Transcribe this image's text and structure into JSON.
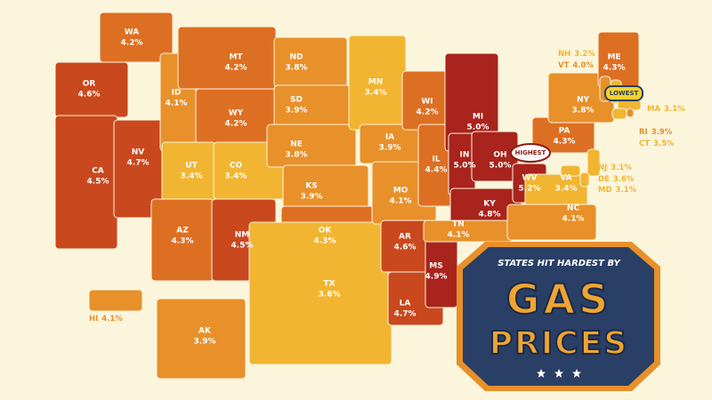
{
  "title": {
    "line1": "STATES HIT HARDEST BY",
    "line2": "GAS",
    "line3": "PRICES"
  },
  "badges": {
    "highest": "HIGHEST",
    "lowest": "LOWEST"
  },
  "states": [
    {
      "abbr": "WA",
      "value": "4.2%"
    },
    {
      "abbr": "OR",
      "value": "4.6%"
    },
    {
      "abbr": "CA",
      "value": "4.5%"
    },
    {
      "abbr": "NV",
      "value": "4.7%"
    },
    {
      "abbr": "ID",
      "value": "4.1%"
    },
    {
      "abbr": "MT",
      "value": "4.2%"
    },
    {
      "abbr": "WY",
      "value": "4.2%"
    },
    {
      "abbr": "UT",
      "value": "3.4%"
    },
    {
      "abbr": "CO",
      "value": "3.4%"
    },
    {
      "abbr": "AZ",
      "value": "4.3%"
    },
    {
      "abbr": "NM",
      "value": "4.5%"
    },
    {
      "abbr": "ND",
      "value": "3.8%"
    },
    {
      "abbr": "SD",
      "value": "3.9%"
    },
    {
      "abbr": "NE",
      "value": "3.8%"
    },
    {
      "abbr": "KS",
      "value": "3.9%"
    },
    {
      "abbr": "OK",
      "value": "4.3%"
    },
    {
      "abbr": "TX",
      "value": "3.6%"
    },
    {
      "abbr": "MN",
      "value": "3.4%"
    },
    {
      "abbr": "IA",
      "value": "3.9%"
    },
    {
      "abbr": "MO",
      "value": "4.1%"
    },
    {
      "abbr": "AR",
      "value": "4.6%"
    },
    {
      "abbr": "LA",
      "value": "4.7%"
    },
    {
      "abbr": "MS",
      "value": "4.9%"
    },
    {
      "abbr": "WI",
      "value": "4.2%"
    },
    {
      "abbr": "IL",
      "value": "4.4%"
    },
    {
      "abbr": "MI",
      "value": "5.0%"
    },
    {
      "abbr": "IN",
      "value": "5.0%"
    },
    {
      "abbr": "OH",
      "value": "5.0%"
    },
    {
      "abbr": "KY",
      "value": "4.8%"
    },
    {
      "abbr": "TN",
      "value": "4.1%"
    },
    {
      "abbr": "WV",
      "value": "5.2%"
    },
    {
      "abbr": "VA",
      "value": "3.4%"
    },
    {
      "abbr": "NC",
      "value": "4.1%"
    },
    {
      "abbr": "PA",
      "value": "4.3%"
    },
    {
      "abbr": "NY",
      "value": "3.8%"
    },
    {
      "abbr": "ME",
      "value": "4.3%"
    },
    {
      "abbr": "NH",
      "value": "3.2%"
    },
    {
      "abbr": "VT",
      "value": "4.0%"
    },
    {
      "abbr": "MA",
      "value": "3.1%"
    },
    {
      "abbr": "RI",
      "value": "3.9%"
    },
    {
      "abbr": "CT",
      "value": "3.5%"
    },
    {
      "abbr": "NJ",
      "value": "3.1%"
    },
    {
      "abbr": "DE",
      "value": "3.6%"
    },
    {
      "abbr": "MD",
      "value": "3.1%"
    },
    {
      "abbr": "HI",
      "value": "4.1%"
    },
    {
      "abbr": "AK",
      "value": "3.9%"
    }
  ]
}
